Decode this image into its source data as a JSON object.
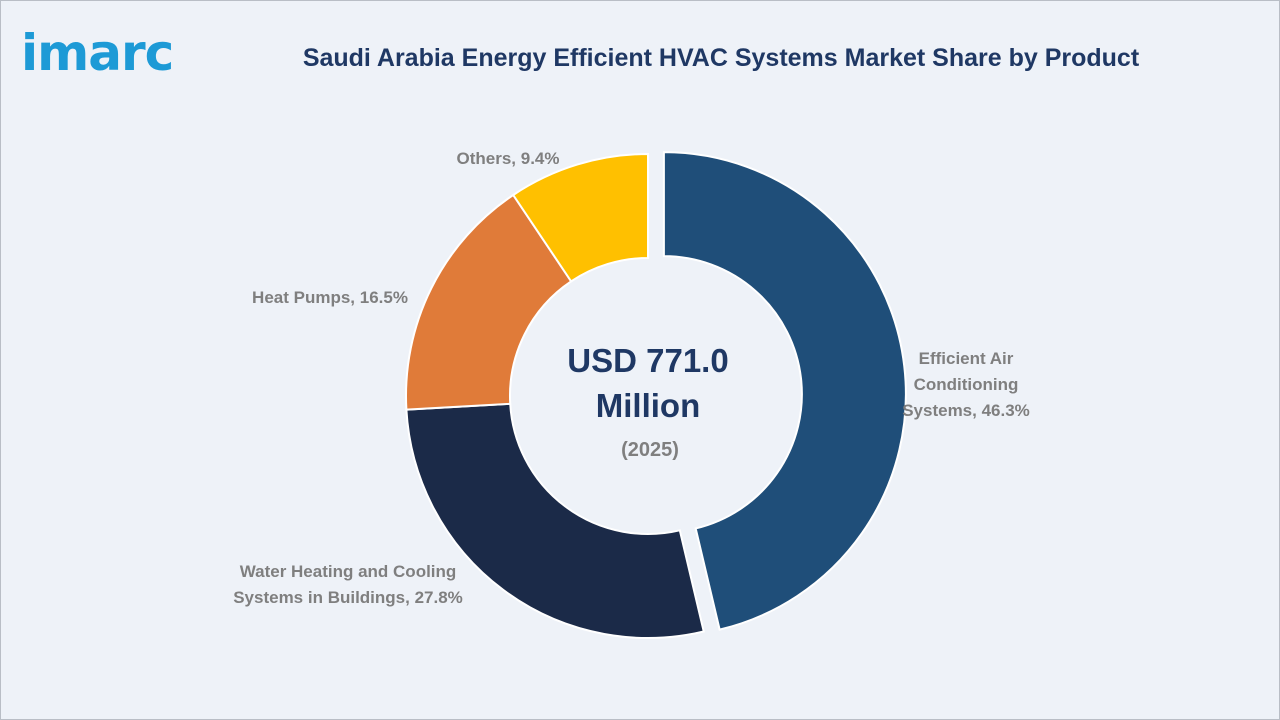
{
  "header": {
    "logo_text": "imarc",
    "title": "Saudi Arabia Energy Efficient HVAC Systems Market Share by Product"
  },
  "colors": {
    "logo": "#1d9ad6",
    "title": "#1f3864",
    "label_text": "#7f7f7f",
    "center_text": "#1f3864",
    "center_year": "#7f7f7f",
    "background": "#eef2f8"
  },
  "chart_data": {
    "type": "pie",
    "style": "donut",
    "center_value_line1": "USD 771.0",
    "center_value_line2": "Million",
    "center_year": "(2025)",
    "slices": [
      {
        "label": "Efficient Air Conditioning Systems",
        "display": [
          "Efficient Air",
          "Conditioning",
          "Systems, 46.3%"
        ],
        "value": 46.3,
        "color": "#1f4e79",
        "exploded": true
      },
      {
        "label": "Water Heating and Cooling Systems in Buildings",
        "display": [
          "Water Heating and Cooling",
          "Systems in Buildings, 27.8%"
        ],
        "value": 27.8,
        "color": "#1b2a48",
        "exploded": false
      },
      {
        "label": "Heat Pumps",
        "display": [
          "Heat Pumps, 16.5%"
        ],
        "value": 16.5,
        "color": "#e07b39",
        "exploded": false
      },
      {
        "label": "Others",
        "display": [
          "Others, 9.4%"
        ],
        "value": 9.4,
        "color": "#ffc000",
        "exploded": false
      }
    ]
  }
}
